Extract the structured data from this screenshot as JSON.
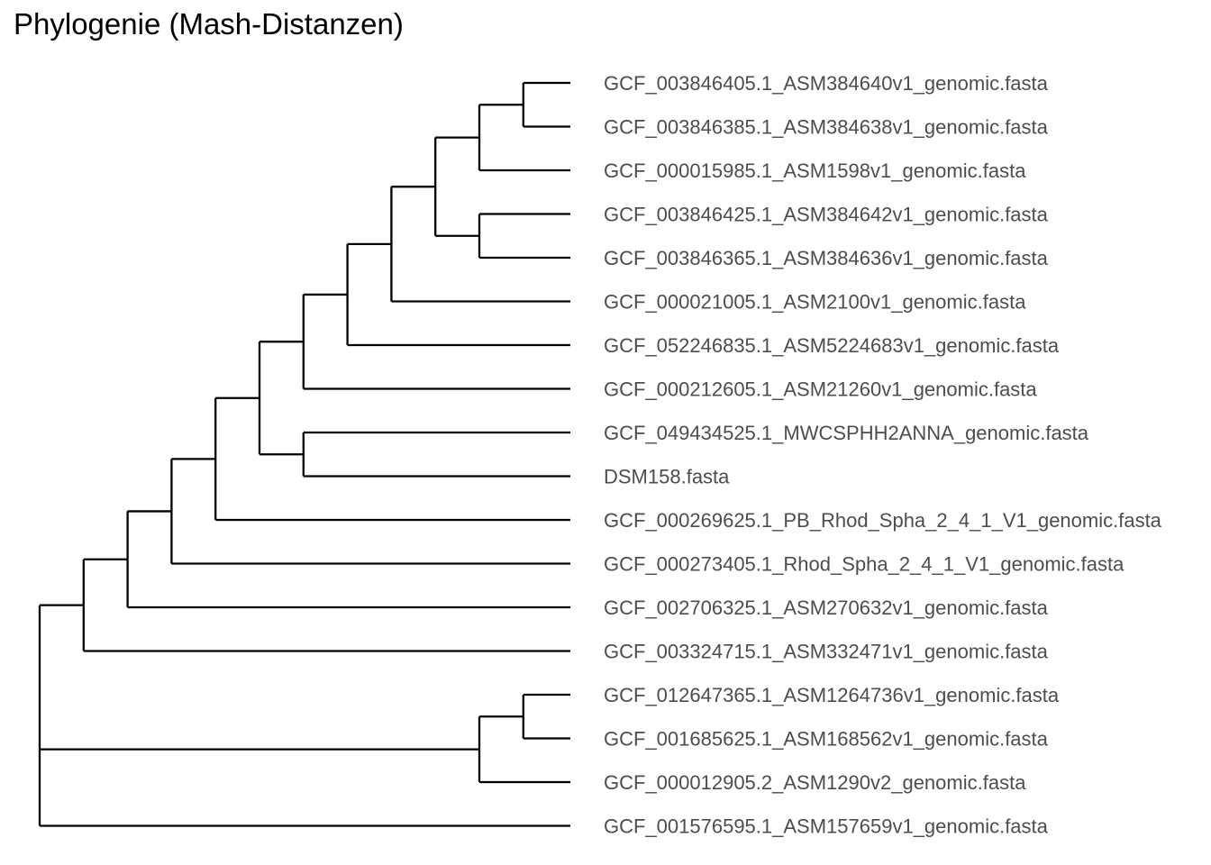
{
  "title": "Phylogenie (Mash-Distanzen)",
  "colors": {
    "branch": "#000000",
    "label": "#4d4d4d",
    "title": "#000000",
    "background": "#ffffff"
  },
  "tips": [
    "GCF_003846405.1_ASM384640v1_genomic.fasta",
    "GCF_003846385.1_ASM384638v1_genomic.fasta",
    "GCF_000015985.1_ASM1598v1_genomic.fasta",
    "GCF_003846425.1_ASM384642v1_genomic.fasta",
    "GCF_003846365.1_ASM384636v1_genomic.fasta",
    "GCF_000021005.1_ASM2100v1_genomic.fasta",
    "GCF_052246835.1_ASM5224683v1_genomic.fasta",
    "GCF_000212605.1_ASM21260v1_genomic.fasta",
    "GCF_049434525.1_MWCSPHH2ANNA_genomic.fasta",
    "DSM158.fasta",
    "GCF_000269625.1_PB_Rhod_Spha_2_4_1_V1_genomic.fasta",
    "GCF_000273405.1_Rhod_Spha_2_4_1_V1_genomic.fasta",
    "GCF_002706325.1_ASM270632v1_genomic.fasta",
    "GCF_003324715.1_ASM332471v1_genomic.fasta",
    "GCF_012647365.1_ASM1264736v1_genomic.fasta",
    "GCF_001685625.1_ASM168562v1_genomic.fasta",
    "GCF_000012905.2_ASM1290v2_genomic.fasta",
    "GCF_001576595.1_ASM157659v1_genomic.fasta"
  ],
  "tree": {
    "children": [
      {
        "children": [
          {
            "children": [
              {
                "children": [
                  {
                    "children": [
                      {
                        "children": [
                          {
                            "children": [
                              {
                                "children": [
                                  {
                                    "children": [
                                      {
                                        "children": [
                                          {
                                            "children": [
                                              {
                                                "tip": 0
                                              },
                                              {
                                                "tip": 1
                                              }
                                            ]
                                          },
                                          {
                                            "tip": 2
                                          }
                                        ]
                                      },
                                      {
                                        "children": [
                                          {
                                            "tip": 3
                                          },
                                          {
                                            "tip": 4
                                          }
                                        ]
                                      }
                                    ]
                                  },
                                  {
                                    "tip": 5
                                  }
                                ]
                              },
                              {
                                "tip": 6
                              }
                            ]
                          },
                          {
                            "tip": 7
                          }
                        ]
                      },
                      {
                        "children": [
                          {
                            "tip": 8
                          },
                          {
                            "tip": 9
                          }
                        ]
                      }
                    ]
                  },
                  {
                    "tip": 10
                  }
                ]
              },
              {
                "tip": 11
              }
            ]
          },
          {
            "tip": 12
          }
        ]
      },
      {
        "tip": 13
      }
    ]
  },
  "outgroup": {
    "children": [
      {
        "children": [
          {
            "children": [
              {
                "children": [
                  {
                    "tip": 14
                  },
                  {
                    "tip": 15
                  }
                ]
              },
              {
                "tip": 16
              }
            ]
          }
        ]
      },
      {
        "tip": 17
      }
    ]
  }
}
